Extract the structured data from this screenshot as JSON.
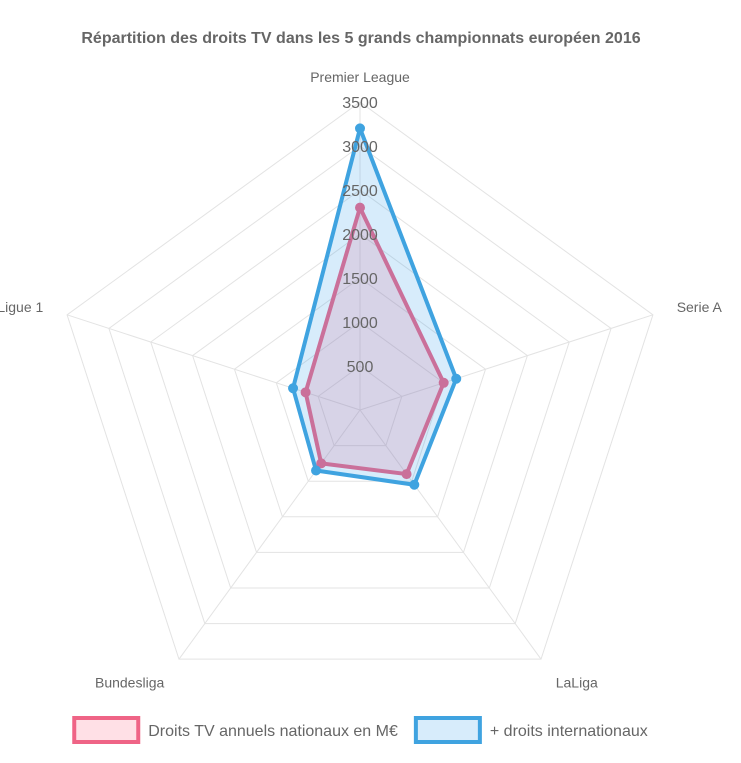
{
  "chart_data": {
    "type": "radar",
    "title": "Répartition des droits TV dans les 5 grands championnats européen 2016",
    "categories": [
      "Premier League",
      "Serie A",
      "LaLiga",
      "Bundesliga",
      "Ligue 1"
    ],
    "rmin": 0,
    "rmax": 3500,
    "ticks": [
      500,
      1000,
      1500,
      2000,
      2500,
      3000,
      3500
    ],
    "grid": true,
    "legend_position": "bottom",
    "series": [
      {
        "name": "Droits TV annuels nationaux en M€",
        "values": [
          2300,
          1000,
          900,
          750,
          650
        ],
        "color": "#ef6486",
        "fill": "rgba(255, 99, 132, 0.2)"
      },
      {
        "name": "+ droits internationaux",
        "values": [
          3200,
          1150,
          1050,
          850,
          800
        ],
        "color": "#3fa3e0",
        "fill": "rgba(54, 162, 235, 0.2)"
      }
    ]
  }
}
